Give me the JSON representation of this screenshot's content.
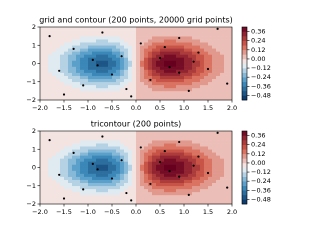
{
  "chart_data": [
    {
      "type": "contour",
      "title": "grid and contour (200 points, 20000 grid points)",
      "x": [
        -1.8,
        -1.6,
        -1.3,
        -1.1,
        -0.9,
        -0.7,
        -0.5,
        -0.3,
        -0.1,
        0.1,
        0.3,
        0.5,
        0.7,
        0.9,
        1.1,
        1.3,
        1.5,
        1.7,
        1.9,
        -1.5,
        -0.8,
        0.6,
        1.2,
        -0.2,
        0.9
      ],
      "y": [
        1.5,
        -0.4,
        0.8,
        -1.2,
        0.2,
        1.7,
        -0.6,
        0.4,
        -1.8,
        1.1,
        -0.9,
        0.3,
        -0.2,
        1.4,
        -1.5,
        0.6,
        -0.3,
        1.9,
        -1.1,
        -1.7,
        -0.1,
        0.9,
        0.1,
        -1.4,
        -0.5
      ],
      "xlim": [
        -2,
        2
      ],
      "ylim": [
        -2,
        2
      ],
      "xticks": [
        {
          "value": -2,
          "label": "−2.0"
        },
        {
          "value": -1.5,
          "label": "−1.5"
        },
        {
          "value": -1,
          "label": "−1.0"
        },
        {
          "value": -0.5,
          "label": "−0.5"
        },
        {
          "value": 0,
          "label": "0.0"
        },
        {
          "value": 0.5,
          "label": "0.5"
        },
        {
          "value": 1,
          "label": "1.0"
        },
        {
          "value": 1.5,
          "label": "1.5"
        },
        {
          "value": 2,
          "label": "2.0"
        }
      ],
      "yticks": [
        {
          "value": -2,
          "label": "−2"
        },
        {
          "value": -1,
          "label": "−1"
        },
        0,
        1,
        2
      ],
      "clim": [
        -0.54,
        0.42
      ],
      "cticks": [
        {
          "value": -0.48,
          "label": "−0.48"
        },
        {
          "value": -0.36,
          "label": "−0.36"
        },
        {
          "value": -0.24,
          "label": "−0.24"
        },
        {
          "value": -0.12,
          "label": "−0.12"
        },
        {
          "value": 0,
          "label": "0.00"
        },
        {
          "value": 0.12,
          "label": "0.12"
        },
        {
          "value": 0.24,
          "label": "0.24"
        },
        {
          "value": 0.36,
          "label": "0.36"
        }
      ],
      "point_color": "#000000"
    },
    {
      "type": "contour",
      "title": "tricontour (200 points)",
      "x": [
        -1.8,
        -1.6,
        -1.3,
        -1.1,
        -0.9,
        -0.7,
        -0.5,
        -0.3,
        -0.1,
        0.1,
        0.3,
        0.5,
        0.7,
        0.9,
        1.1,
        1.3,
        1.5,
        1.7,
        1.9,
        -1.5,
        -0.8,
        0.6,
        1.2,
        -0.2,
        0.9
      ],
      "y": [
        1.5,
        -0.4,
        0.8,
        -1.2,
        0.2,
        1.7,
        -0.6,
        0.4,
        -1.8,
        1.1,
        -0.9,
        0.3,
        -0.2,
        1.4,
        -1.5,
        0.6,
        -0.3,
        1.9,
        -1.1,
        -1.7,
        -0.1,
        0.9,
        0.1,
        -1.4,
        -0.5
      ],
      "xlim": [
        -2,
        2
      ],
      "ylim": [
        -2,
        2
      ],
      "xticks": [
        {
          "value": -2,
          "label": "−2.0"
        },
        {
          "value": -1.5,
          "label": "−1.5"
        },
        {
          "value": -1,
          "label": "−1.0"
        },
        {
          "value": -0.5,
          "label": "−0.5"
        },
        {
          "value": 0,
          "label": "0.0"
        },
        {
          "value": 0.5,
          "label": "0.5"
        },
        {
          "value": 1,
          "label": "1.0"
        },
        {
          "value": 1.5,
          "label": "1.5"
        },
        {
          "value": 2,
          "label": "2.0"
        }
      ],
      "yticks": [
        {
          "value": -2,
          "label": "−2"
        },
        {
          "value": -1,
          "label": "−1"
        },
        0,
        1,
        2
      ],
      "clim": [
        -0.54,
        0.42
      ],
      "cticks": [
        {
          "value": -0.48,
          "label": "−0.48"
        },
        {
          "value": -0.36,
          "label": "−0.36"
        },
        {
          "value": -0.24,
          "label": "−0.24"
        },
        {
          "value": -0.12,
          "label": "−0.12"
        },
        {
          "value": 0,
          "label": "0.00"
        },
        {
          "value": 0.12,
          "label": "0.12"
        },
        {
          "value": 0.24,
          "label": "0.24"
        },
        {
          "value": 0.36,
          "label": "0.36"
        }
      ],
      "point_color": "#000000"
    }
  ]
}
